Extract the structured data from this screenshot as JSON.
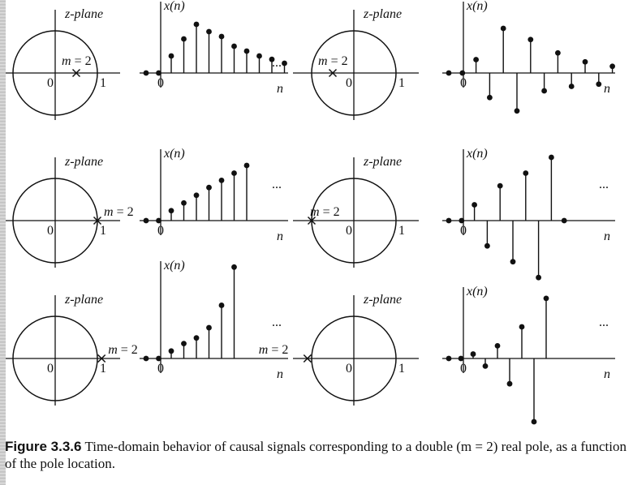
{
  "figure": {
    "label": "Figure 3.3.6",
    "caption": "Time-domain behavior of causal signals corresponding to a double (m = 2) real pole, as a function of the pole location."
  },
  "labels": {
    "zplane": "z-plane",
    "multiplicity": "m = 2",
    "origin": "0",
    "unit": "1",
    "xn": "x(n)",
    "n": "n",
    "ellipsis": "..."
  },
  "panels": [
    {
      "row": 0,
      "col": 0,
      "pole": 0.5,
      "values": [
        0,
        0,
        0.35,
        0.7,
        1.0,
        0.85,
        0.75,
        0.55,
        0.45,
        0.35,
        0.28,
        0.2
      ],
      "ellipsis": true
    },
    {
      "row": 0,
      "col": 1,
      "pole": -0.5,
      "values": [
        0,
        0,
        0.3,
        -0.55,
        1.0,
        -0.85,
        0.75,
        -0.4,
        0.45,
        -0.3,
        0.25,
        -0.25,
        0.15
      ],
      "ellipsis": false
    },
    {
      "row": 1,
      "col": 0,
      "pole": 1.0,
      "values": [
        0,
        0,
        0.18,
        0.32,
        0.46,
        0.6,
        0.73,
        0.86,
        1.0
      ],
      "ellipsis": true
    },
    {
      "row": 1,
      "col": 1,
      "pole": -1.0,
      "values": [
        0,
        0,
        0.25,
        -0.4,
        0.55,
        -0.65,
        0.75,
        -0.9,
        1.0,
        0.0
      ],
      "ellipsis": true
    },
    {
      "row": 2,
      "col": 0,
      "pole": 1.1,
      "values": [
        0,
        0,
        0.08,
        0.16,
        0.22,
        0.33,
        0.57,
        0.98
      ],
      "ellipsis": true
    },
    {
      "row": 2,
      "col": 1,
      "pole": -1.1,
      "values": [
        0,
        0,
        0.07,
        -0.12,
        0.2,
        -0.4,
        0.5,
        -1.0,
        0.95
      ],
      "ellipsis": true
    }
  ]
}
